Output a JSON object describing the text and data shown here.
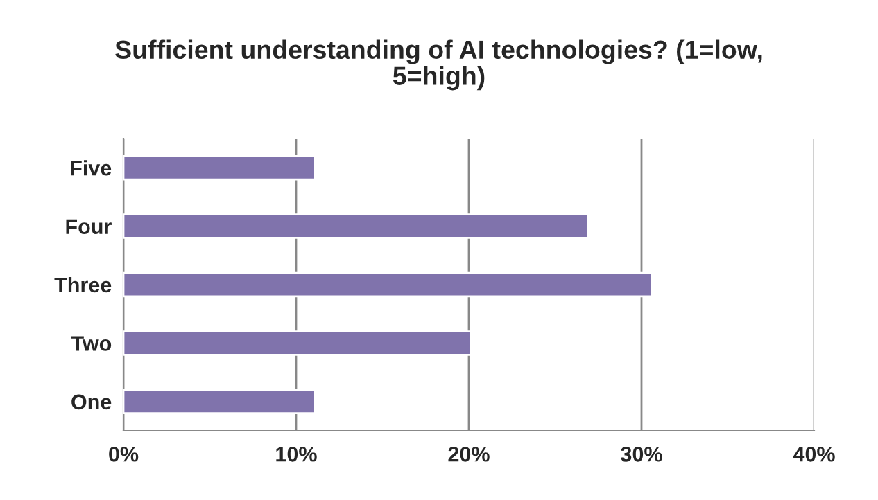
{
  "chart_data": {
    "type": "bar",
    "orientation": "horizontal",
    "title": "Sufficient understanding of AI technologies? (1=low, 5=high)",
    "categories": [
      "Five",
      "Four",
      "Three",
      "Two",
      "One"
    ],
    "series": [
      {
        "color": "#8073ac",
        "values": [
          11.1,
          26.9,
          30.6,
          20.1,
          11.1
        ]
      }
    ],
    "xlim": [
      0,
      40
    ],
    "xticks": [
      {
        "value": 0,
        "label": "0%"
      },
      {
        "value": 10,
        "label": "10%"
      },
      {
        "value": 20,
        "label": "20%"
      },
      {
        "value": 30,
        "label": "30%"
      },
      {
        "value": 40,
        "label": "40%"
      }
    ],
    "grid": "x"
  }
}
